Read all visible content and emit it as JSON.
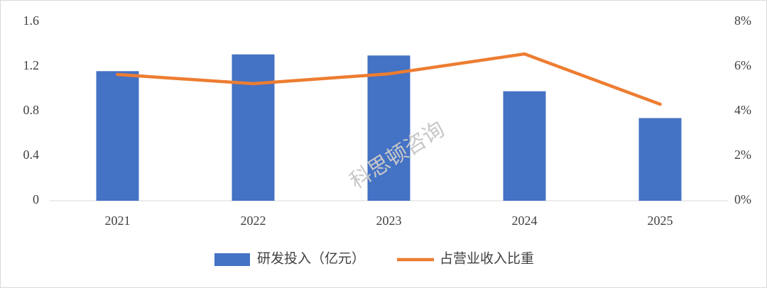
{
  "chart_data": {
    "type": "bar",
    "annotations": [
      "科思顿咨询"
    ],
    "categories": [
      "2021",
      "2022",
      "2023",
      "2024",
      "2025"
    ],
    "series": [
      {
        "name": "研发投入（亿元）",
        "color": "#4472c4",
        "type": "bar",
        "values": [
          1.16,
          1.31,
          1.3,
          0.98,
          0.74
        ]
      },
      {
        "name": "占营业收入比重",
        "color": "#ed7d31",
        "type": "line",
        "axis": "y2",
        "values": [
          5.65,
          5.24,
          5.68,
          6.57,
          4.32
        ]
      }
    ],
    "ylim": [
      0,
      1.6
    ],
    "yticks": [
      0,
      0.4,
      0.8,
      1.2,
      1.6
    ],
    "y2lim": [
      0,
      8
    ],
    "y2ticks": [
      {
        "value": 0,
        "label": "0%"
      },
      {
        "value": 2,
        "label": "2%"
      },
      {
        "value": 4,
        "label": "4%"
      },
      {
        "value": 6,
        "label": "6%"
      },
      {
        "value": 8,
        "label": "8%"
      }
    ],
    "grid": false,
    "legend": "bottom"
  }
}
